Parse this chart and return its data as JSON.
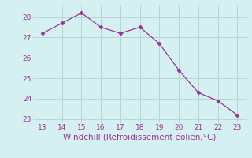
{
  "x": [
    13,
    14,
    15,
    16,
    17,
    18,
    19,
    20,
    21,
    22,
    23
  ],
  "y": [
    27.2,
    27.7,
    28.2,
    27.5,
    27.2,
    27.5,
    26.7,
    25.4,
    24.3,
    23.9,
    23.2
  ],
  "xlim": [
    12.5,
    23.5
  ],
  "ylim": [
    22.8,
    28.6
  ],
  "xticks": [
    13,
    14,
    15,
    16,
    17,
    18,
    19,
    20,
    21,
    22,
    23
  ],
  "yticks": [
    23,
    24,
    25,
    26,
    27,
    28
  ],
  "xlabel": "Windchill (Refroidissement éolien,°C)",
  "line_color": "#993399",
  "marker": "D",
  "marker_size": 2.5,
  "bg_color": "#d4f0f0",
  "grid_color": "#b8d4d4",
  "tick_label_color": "#993399",
  "xlabel_color": "#993399",
  "tick_fontsize": 6.5,
  "xlabel_fontsize": 7.5
}
